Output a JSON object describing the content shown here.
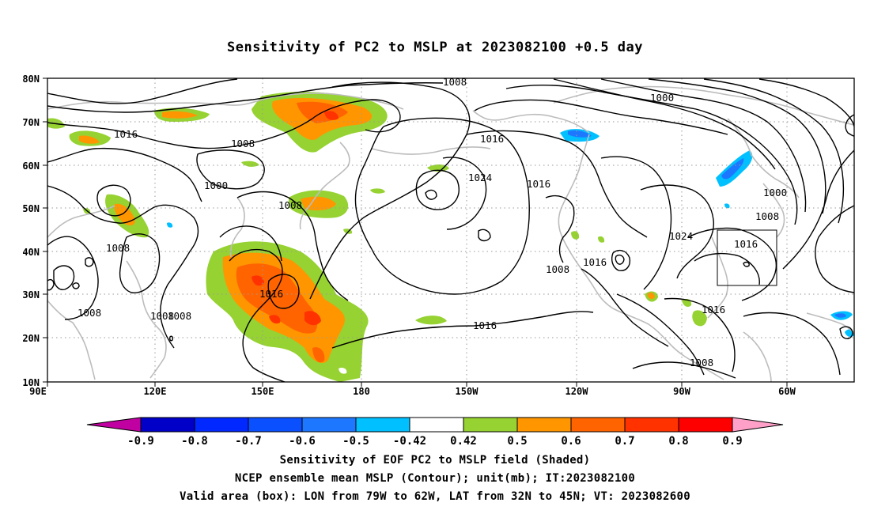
{
  "title": "Sensitivity of PC2 to MSLP at 2023082100 +0.5 day",
  "lat_ticks": [
    "80N",
    "70N",
    "60N",
    "50N",
    "40N",
    "30N",
    "20N",
    "10N"
  ],
  "lon_ticks": [
    "90E",
    "120E",
    "150E",
    "180",
    "150W",
    "120W",
    "90W",
    "60W"
  ],
  "contour_labels": [
    "1008",
    "1000",
    "1016",
    "1008",
    "1000",
    "1008",
    "1008",
    "1016",
    "1024",
    "1016",
    "1000",
    "1008",
    "1024",
    "1016",
    "1008",
    "1016",
    "1008",
    "1016",
    "1008",
    "1008",
    "1008",
    "1016",
    "1016",
    "1008"
  ],
  "colorbar": {
    "labels": [
      "-0.9",
      "-0.8",
      "-0.7",
      "-0.6",
      "-0.5",
      "-0.42",
      "0.42",
      "0.5",
      "0.6",
      "0.7",
      "0.8",
      "0.9"
    ],
    "colors": [
      "#c000a0",
      "#0000c8",
      "#0028ff",
      "#0a50ff",
      "#1e78ff",
      "#00c0ff",
      "#ffffff",
      "#96d232",
      "#ff9600",
      "#ff6400",
      "#ff3200",
      "#ff0000",
      "#ffa0c8"
    ]
  },
  "captions": [
    "Sensitivity of EOF PC2 to MSLP field (Shaded)",
    "NCEP ensemble mean MSLP (Contour); unit(mb); IT:2023082100",
    "Valid area (box): LON from 79W to 62W, LAT from 32N to 45N; VT: 2023082600"
  ]
}
